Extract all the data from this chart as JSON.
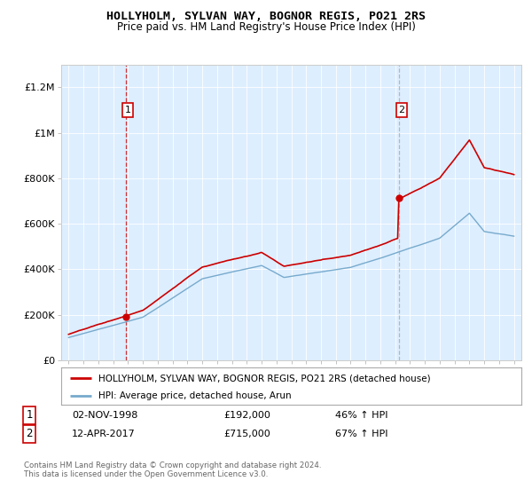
{
  "title": "HOLLYHOLM, SYLVAN WAY, BOGNOR REGIS, PO21 2RS",
  "subtitle": "Price paid vs. HM Land Registry's House Price Index (HPI)",
  "legend_line1": "HOLLYHOLM, SYLVAN WAY, BOGNOR REGIS, PO21 2RS (detached house)",
  "legend_line2": "HPI: Average price, detached house, Arun",
  "annotation1": {
    "label": "1",
    "date": "02-NOV-1998",
    "price": "£192,000",
    "hpi": "46% ↑ HPI"
  },
  "annotation2": {
    "label": "2",
    "date": "12-APR-2017",
    "price": "£715,000",
    "hpi": "67% ↑ HPI"
  },
  "footnote1": "Contains HM Land Registry data © Crown copyright and database right 2024.",
  "footnote2": "This data is licensed under the Open Government Licence v3.0.",
  "sale1_x": 1998.84,
  "sale1_y": 192000,
  "sale2_x": 2017.28,
  "sale2_y": 715000,
  "red_color": "#cc0000",
  "blue_color": "#77aacc",
  "vline1_color": "#cc0000",
  "vline2_color": "#aaaaaa",
  "background_color": "#ddeeff",
  "ylim": [
    0,
    1300000
  ],
  "xlim_start": 1994.5,
  "xlim_end": 2025.5,
  "yticks": [
    0,
    200000,
    400000,
    600000,
    800000,
    1000000,
    1200000
  ],
  "ytick_labels": [
    "£0",
    "£200K",
    "£400K",
    "£600K",
    "£800K",
    "£1M",
    "£1.2M"
  ]
}
